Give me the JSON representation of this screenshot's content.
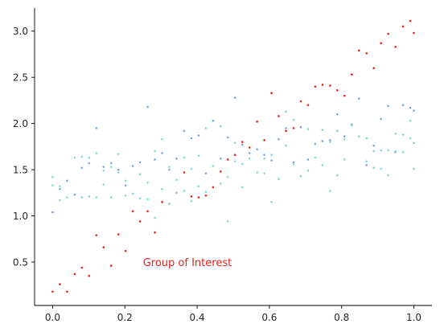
{
  "chart_data": {
    "type": "scatter",
    "title": "",
    "xlabel": "",
    "ylabel": "",
    "xlim": [
      -0.05,
      1.05
    ],
    "ylim": [
      0.03,
      3.25
    ],
    "grid": false,
    "legend": "none",
    "x_ticks": [
      {
        "value": 0.0,
        "label": "0.0"
      },
      {
        "value": 0.2,
        "label": "0.2"
      },
      {
        "value": 0.4,
        "label": "0.4"
      },
      {
        "value": 0.6,
        "label": "0.6"
      },
      {
        "value": 0.8,
        "label": "0.8"
      },
      {
        "value": 1.0,
        "label": "1.0"
      }
    ],
    "y_ticks": [
      {
        "value": 0.5,
        "label": "0.5"
      },
      {
        "value": 1.0,
        "label": "1.0"
      },
      {
        "value": 1.5,
        "label": "1.5"
      },
      {
        "value": 2.0,
        "label": "2.0"
      },
      {
        "value": 2.5,
        "label": "2.5"
      },
      {
        "value": 3.0,
        "label": "3.0"
      }
    ],
    "annotations": [
      {
        "text": "Group of Interest",
        "x": 0.25,
        "y": 0.5,
        "color": "#e8231b"
      }
    ],
    "series": [
      {
        "color": "#e8231b",
        "points": [
          [
            0.0,
            0.18
          ],
          [
            0.02,
            0.26
          ],
          [
            0.04,
            0.18
          ],
          [
            0.061,
            0.37
          ],
          [
            0.081,
            0.44
          ],
          [
            0.101,
            0.35
          ],
          [
            0.121,
            0.79
          ],
          [
            0.141,
            0.66
          ],
          [
            0.162,
            0.46
          ],
          [
            0.182,
            0.8
          ],
          [
            0.202,
            0.62
          ],
          [
            0.222,
            1.05
          ],
          [
            0.242,
            0.94
          ],
          [
            0.263,
            1.05
          ],
          [
            0.283,
            0.82
          ],
          [
            0.303,
            1.15
          ],
          [
            0.323,
            1.13
          ],
          [
            0.343,
            1.25
          ],
          [
            0.364,
            1.47
          ],
          [
            0.384,
            1.21
          ],
          [
            0.404,
            1.2
          ],
          [
            0.424,
            1.22
          ],
          [
            0.444,
            1.31
          ],
          [
            0.465,
            1.48
          ],
          [
            0.485,
            1.61
          ],
          [
            0.505,
            1.66
          ],
          [
            0.525,
            1.8
          ],
          [
            0.545,
            1.74
          ],
          [
            0.566,
            2.02
          ],
          [
            0.586,
            1.82
          ],
          [
            0.606,
            2.33
          ],
          [
            0.626,
            2.08
          ],
          [
            0.646,
            1.92
          ],
          [
            0.667,
            1.95
          ],
          [
            0.687,
            2.24
          ],
          [
            0.707,
            2.2
          ],
          [
            0.727,
            2.4
          ],
          [
            0.747,
            2.42
          ],
          [
            0.768,
            2.41
          ],
          [
            0.788,
            2.36
          ],
          [
            0.808,
            2.3
          ],
          [
            0.828,
            2.53
          ],
          [
            0.848,
            2.79
          ],
          [
            0.869,
            2.76
          ],
          [
            0.889,
            2.6
          ],
          [
            0.909,
            2.87
          ],
          [
            0.929,
            2.97
          ],
          [
            0.949,
            2.83
          ],
          [
            0.97,
            3.05
          ],
          [
            0.99,
            3.11
          ],
          [
            1.0,
            2.98
          ]
        ]
      },
      {
        "color": "#7fa6d9",
        "points": [
          [
            0.0,
            1.04
          ],
          [
            0.02,
            1.29
          ],
          [
            0.04,
            1.38
          ],
          [
            0.061,
            1.23
          ],
          [
            0.081,
            1.52
          ],
          [
            0.101,
            1.57
          ],
          [
            0.121,
            1.95
          ],
          [
            0.141,
            1.53
          ],
          [
            0.162,
            1.57
          ],
          [
            0.182,
            1.5
          ],
          [
            0.202,
            1.33
          ],
          [
            0.222,
            1.54
          ],
          [
            0.242,
            1.58
          ],
          [
            0.263,
            2.18
          ],
          [
            0.283,
            1.61
          ],
          [
            0.303,
            1.68
          ],
          [
            0.323,
            1.5
          ],
          [
            0.343,
            1.62
          ],
          [
            0.364,
            1.92
          ],
          [
            0.384,
            1.84
          ],
          [
            0.404,
            1.87
          ],
          [
            0.424,
            1.46
          ],
          [
            0.444,
            2.03
          ],
          [
            0.465,
            1.62
          ],
          [
            0.485,
            1.85
          ],
          [
            0.505,
            2.28
          ],
          [
            0.525,
            1.77
          ],
          [
            0.545,
            1.68
          ],
          [
            0.566,
            1.72
          ],
          [
            0.586,
            1.66
          ],
          [
            0.606,
            1.6
          ],
          [
            0.626,
            1.83
          ],
          [
            0.646,
            1.95
          ],
          [
            0.667,
            1.58
          ],
          [
            0.687,
            1.96
          ],
          [
            0.707,
            1.61
          ],
          [
            0.727,
            1.78
          ],
          [
            0.747,
            1.81
          ],
          [
            0.768,
            1.82
          ],
          [
            0.788,
            2.1
          ],
          [
            0.808,
            1.86
          ],
          [
            0.828,
            1.99
          ],
          [
            0.848,
            2.27
          ],
          [
            0.869,
            1.55
          ],
          [
            0.889,
            1.76
          ],
          [
            0.909,
            2.05
          ],
          [
            0.929,
            2.19
          ],
          [
            0.949,
            1.69
          ],
          [
            0.97,
            2.2
          ],
          [
            0.99,
            2.17
          ],
          [
            1.0,
            2.14
          ]
        ]
      },
      {
        "color": "#7fdcd2",
        "points": [
          [
            0.0,
            1.42
          ],
          [
            0.0,
            1.33
          ],
          [
            0.02,
            1.17
          ],
          [
            0.02,
            1.32
          ],
          [
            0.04,
            1.2
          ],
          [
            0.061,
            1.63
          ],
          [
            0.081,
            1.2
          ],
          [
            0.081,
            1.64
          ],
          [
            0.101,
            1.21
          ],
          [
            0.101,
            1.63
          ],
          [
            0.121,
            1.2
          ],
          [
            0.121,
            1.68
          ],
          [
            0.141,
            1.34
          ],
          [
            0.141,
            1.49
          ],
          [
            0.162,
            1.2
          ],
          [
            0.162,
            1.53
          ],
          [
            0.182,
            1.47
          ],
          [
            0.182,
            1.67
          ],
          [
            0.202,
            1.22
          ],
          [
            0.202,
            1.38
          ],
          [
            0.222,
            1.24
          ],
          [
            0.242,
            1.19
          ],
          [
            0.242,
            1.45
          ],
          [
            0.263,
            1.18
          ],
          [
            0.263,
            1.36
          ],
          [
            0.283,
            0.98
          ],
          [
            0.283,
            1.7
          ],
          [
            0.303,
            1.29
          ],
          [
            0.303,
            1.83
          ],
          [
            0.323,
            1.13
          ],
          [
            0.323,
            1.53
          ],
          [
            0.343,
            1.25
          ],
          [
            0.343,
            1.39
          ],
          [
            0.364,
            1.27
          ],
          [
            0.364,
            1.63
          ],
          [
            0.384,
            1.16
          ],
          [
            0.384,
            1.51
          ],
          [
            0.404,
            1.32
          ],
          [
            0.404,
            1.65
          ],
          [
            0.424,
            1.26
          ],
          [
            0.424,
            1.95
          ],
          [
            0.444,
            1.54
          ],
          [
            0.465,
            1.35
          ],
          [
            0.465,
            1.97
          ],
          [
            0.485,
            0.94
          ],
          [
            0.485,
            1.42
          ],
          [
            0.505,
            1.59
          ],
          [
            0.505,
            1.79
          ],
          [
            0.525,
            1.31
          ],
          [
            0.525,
            1.56
          ],
          [
            0.545,
            1.62
          ],
          [
            0.566,
            1.47
          ],
          [
            0.586,
            1.46
          ],
          [
            0.586,
            1.62
          ],
          [
            0.606,
            1.15
          ],
          [
            0.606,
            1.66
          ],
          [
            0.626,
            1.4
          ],
          [
            0.646,
            1.76
          ],
          [
            0.646,
            2.13
          ],
          [
            0.667,
            1.56
          ],
          [
            0.667,
            2.04
          ],
          [
            0.687,
            1.43
          ],
          [
            0.707,
            1.49
          ],
          [
            0.707,
            1.94
          ],
          [
            0.727,
            1.63
          ],
          [
            0.747,
            1.55
          ],
          [
            0.747,
            1.93
          ],
          [
            0.768,
            1.27
          ],
          [
            0.768,
            1.8
          ],
          [
            0.788,
            1.44
          ],
          [
            0.788,
            1.92
          ],
          [
            0.808,
            1.61
          ],
          [
            0.808,
            1.83
          ],
          [
            0.828,
            1.98
          ],
          [
            0.848,
            1.86
          ],
          [
            0.869,
            1.59
          ],
          [
            0.869,
            1.84
          ],
          [
            0.889,
            1.52
          ],
          [
            0.889,
            1.7
          ],
          [
            0.909,
            1.51
          ],
          [
            0.909,
            1.71
          ],
          [
            0.929,
            1.44
          ],
          [
            0.929,
            1.71
          ],
          [
            0.949,
            1.7
          ],
          [
            0.949,
            1.89
          ],
          [
            0.97,
            1.88
          ],
          [
            0.97,
            1.69
          ],
          [
            0.99,
            1.84
          ],
          [
            0.99,
            2.03
          ],
          [
            1.0,
            1.51
          ],
          [
            1.0,
            1.79
          ]
        ]
      }
    ]
  }
}
